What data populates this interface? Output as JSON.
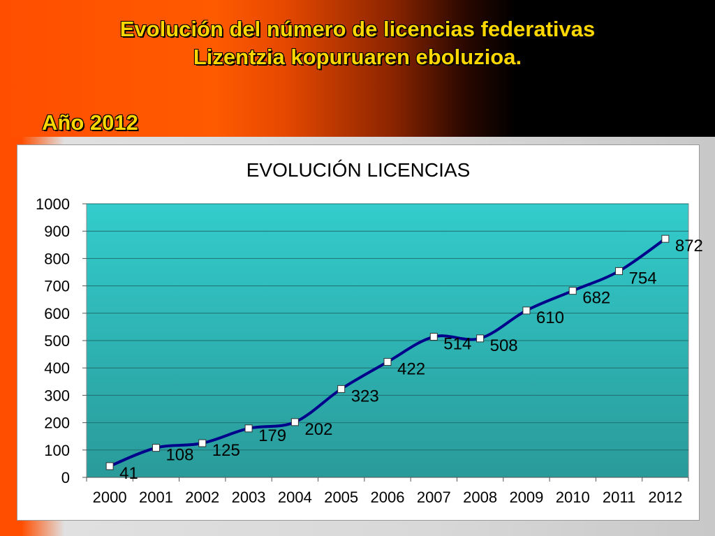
{
  "slide": {
    "title_line1": "Evolución del número de licencias federativas",
    "title_line2": "Lizentzia kopuruaren eboluzioa.",
    "year": "Año 2012"
  },
  "chart_data": {
    "type": "line",
    "title": "EVOLUCIÓN LICENCIAS",
    "categories": [
      "2000",
      "2001",
      "2002",
      "2003",
      "2004",
      "2005",
      "2006",
      "2007",
      "2008",
      "2009",
      "2010",
      "2011",
      "2012"
    ],
    "values": [
      41,
      108,
      125,
      179,
      202,
      323,
      422,
      514,
      508,
      610,
      682,
      754,
      872
    ],
    "ylim": [
      0,
      1000
    ],
    "yticks": [
      0,
      100,
      200,
      300,
      400,
      500,
      600,
      700,
      800,
      900,
      1000
    ],
    "grid": true,
    "legend": "none",
    "colors": {
      "line": "#00008b",
      "plot_top": "#33cccc",
      "plot_bottom": "#2a9a9a",
      "marker": "#ffffff"
    }
  }
}
